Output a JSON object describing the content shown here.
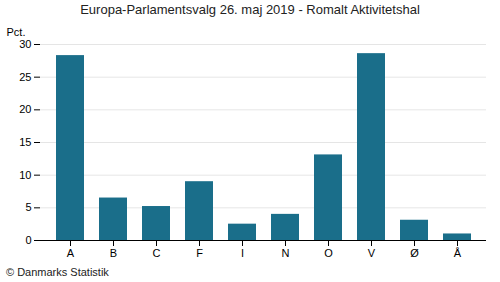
{
  "chart_data": {
    "type": "bar",
    "title": "Europa-Parlamentsvalg 26. maj 2019 - Romalt Aktivitetshal",
    "ylabel": "Pct.",
    "footer": "© Danmarks Statistik",
    "categories": [
      "A",
      "B",
      "C",
      "F",
      "I",
      "N",
      "O",
      "V",
      "Ø",
      "Å"
    ],
    "values": [
      28.3,
      6.5,
      5.2,
      9.0,
      2.5,
      4.0,
      13.1,
      28.6,
      3.1,
      1.0
    ],
    "color": "#1a6e8a",
    "ylim": [
      0,
      30
    ],
    "yticks": [
      0,
      5,
      10,
      15,
      20,
      25,
      30
    ],
    "grid": true
  }
}
